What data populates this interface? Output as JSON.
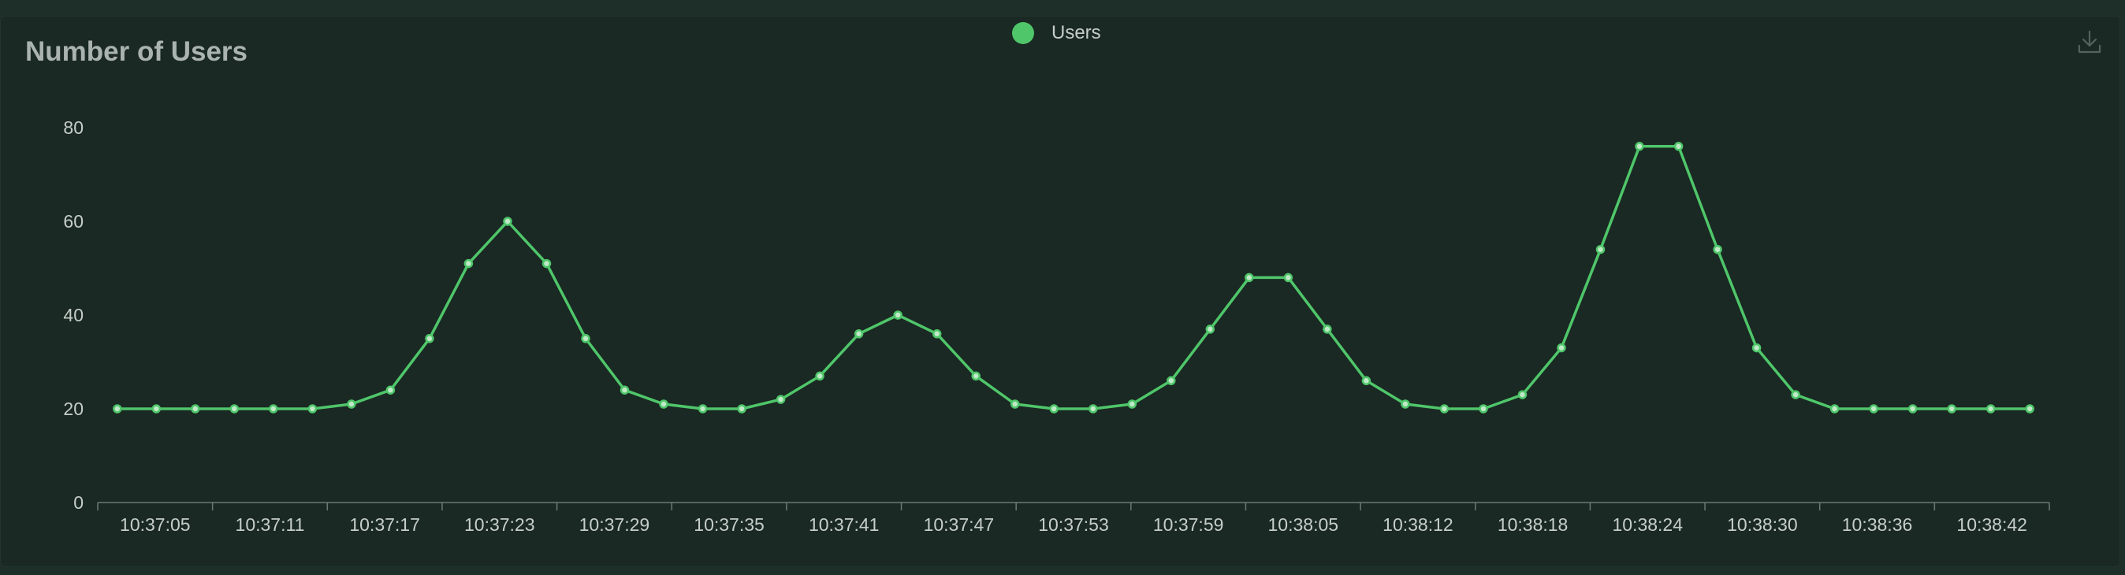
{
  "panel": {
    "title": "Number of Users",
    "download_icon": "download-icon"
  },
  "colors": {
    "line": "#4fc66a",
    "axis": "#6b7a74",
    "text": "#c6cdca"
  },
  "chart_data": {
    "type": "line",
    "title": "Number of Users",
    "xlabel": "",
    "ylabel": "",
    "ylim": [
      0,
      80
    ],
    "yticks": [
      0,
      20,
      40,
      60,
      80
    ],
    "grid": false,
    "legend": "top-center",
    "x_tick_labels": [
      "10:37:05",
      "10:37:11",
      "10:37:17",
      "10:37:23",
      "10:37:29",
      "10:37:35",
      "10:37:41",
      "10:37:47",
      "10:37:53",
      "10:37:59",
      "10:38:05",
      "10:38:12",
      "10:38:18",
      "10:38:24",
      "10:38:30",
      "10:38:36",
      "10:38:42"
    ],
    "series": [
      {
        "name": "Users",
        "values": [
          20,
          20,
          20,
          20,
          20,
          20,
          21,
          24,
          35,
          51,
          60,
          51,
          35,
          24,
          21,
          20,
          20,
          22,
          27,
          36,
          40,
          36,
          27,
          21,
          20,
          20,
          21,
          26,
          37,
          48,
          48,
          37,
          26,
          21,
          20,
          20,
          23,
          33,
          54,
          76,
          76,
          54,
          33,
          23,
          20,
          20,
          20,
          20,
          20,
          20
        ]
      }
    ]
  }
}
